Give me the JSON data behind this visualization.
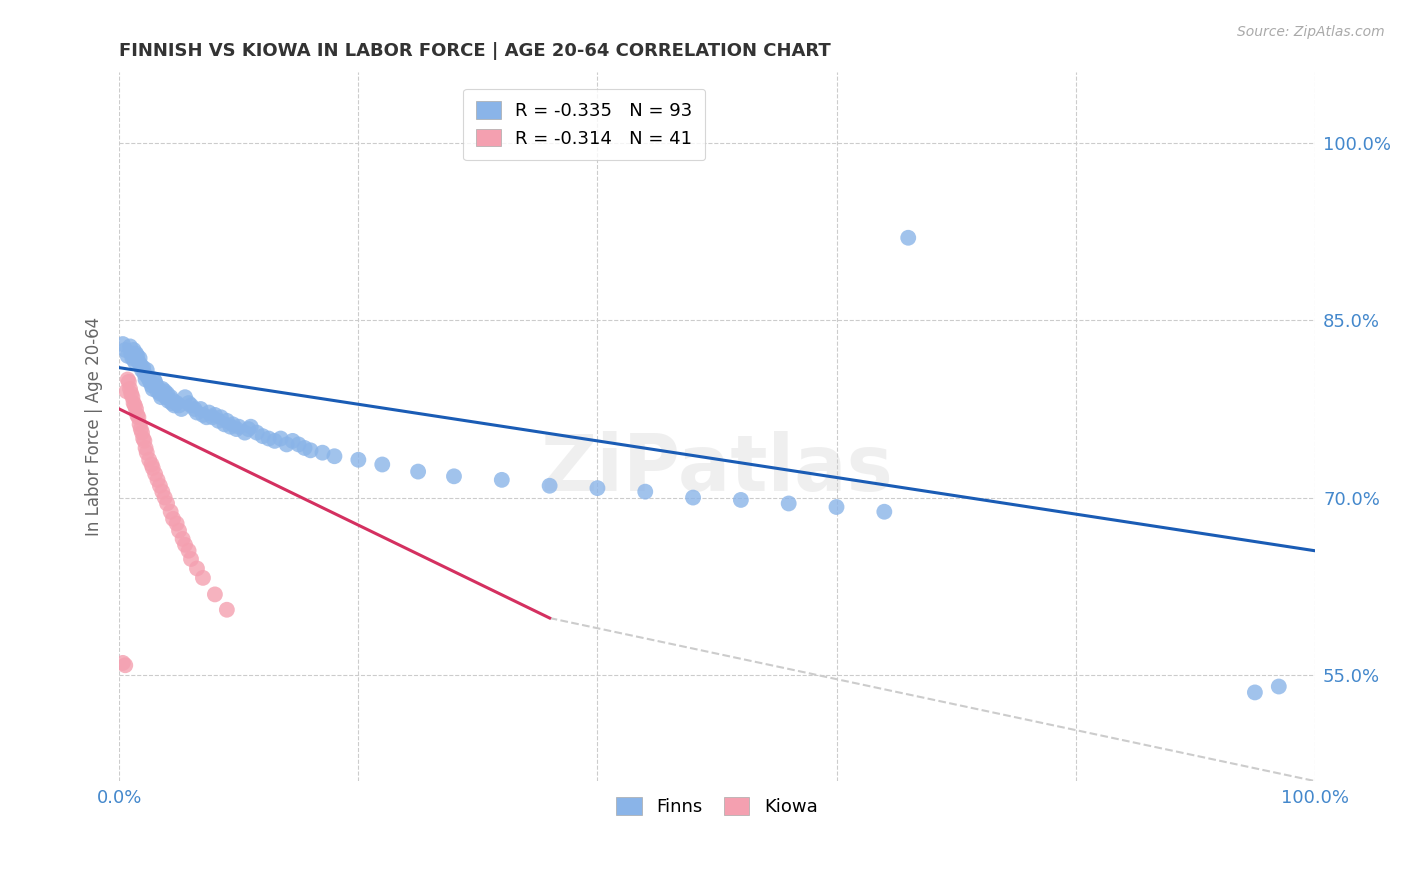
{
  "title": "FINNISH VS KIOWA IN LABOR FORCE | AGE 20-64 CORRELATION CHART",
  "source": "Source: ZipAtlas.com",
  "ylabel": "In Labor Force | Age 20-64",
  "xlim": [
    0.0,
    1.0
  ],
  "ylim": [
    0.46,
    1.06
  ],
  "yticks": [
    0.55,
    0.7,
    0.85,
    1.0
  ],
  "ytick_labels": [
    "55.0%",
    "70.0%",
    "85.0%",
    "100.0%"
  ],
  "xticks": [
    0.0,
    0.2,
    0.4,
    0.6,
    0.8,
    1.0
  ],
  "xtick_labels": [
    "0.0%",
    "",
    "",
    "",
    "",
    "100.0%"
  ],
  "legend_finns": "R = -0.335   N = 93",
  "legend_kiowa": "R = -0.314   N = 41",
  "finns_color": "#8ab4e8",
  "kiowa_color": "#f4a0b0",
  "trend_finns_color": "#1a5cb5",
  "trend_kiowa_color": "#d43060",
  "trend_dashed_color": "#cccccc",
  "grid_color": "#cccccc",
  "axis_label_color": "#4488cc",
  "title_color": "#333333",
  "finns_x": [
    0.003,
    0.005,
    0.007,
    0.009,
    0.01,
    0.011,
    0.012,
    0.013,
    0.014,
    0.015,
    0.016,
    0.017,
    0.018,
    0.019,
    0.02,
    0.021,
    0.022,
    0.023,
    0.024,
    0.025,
    0.026,
    0.027,
    0.028,
    0.029,
    0.03,
    0.031,
    0.032,
    0.033,
    0.034,
    0.035,
    0.036,
    0.037,
    0.038,
    0.039,
    0.04,
    0.041,
    0.043,
    0.044,
    0.045,
    0.046,
    0.048,
    0.05,
    0.052,
    0.055,
    0.058,
    0.06,
    0.063,
    0.065,
    0.068,
    0.07,
    0.073,
    0.075,
    0.078,
    0.08,
    0.083,
    0.085,
    0.088,
    0.09,
    0.093,
    0.095,
    0.098,
    0.1,
    0.105,
    0.108,
    0.11,
    0.115,
    0.12,
    0.125,
    0.13,
    0.135,
    0.14,
    0.145,
    0.15,
    0.155,
    0.16,
    0.17,
    0.18,
    0.2,
    0.22,
    0.25,
    0.28,
    0.32,
    0.36,
    0.4,
    0.44,
    0.48,
    0.52,
    0.56,
    0.6,
    0.64,
    0.66,
    0.95,
    0.97
  ],
  "finns_y": [
    0.83,
    0.825,
    0.82,
    0.828,
    0.822,
    0.818,
    0.825,
    0.815,
    0.822,
    0.82,
    0.815,
    0.818,
    0.812,
    0.808,
    0.81,
    0.805,
    0.8,
    0.808,
    0.802,
    0.8,
    0.798,
    0.795,
    0.792,
    0.8,
    0.798,
    0.795,
    0.79,
    0.792,
    0.788,
    0.785,
    0.792,
    0.788,
    0.79,
    0.785,
    0.788,
    0.782,
    0.785,
    0.78,
    0.782,
    0.778,
    0.78,
    0.778,
    0.775,
    0.785,
    0.78,
    0.778,
    0.775,
    0.772,
    0.775,
    0.77,
    0.768,
    0.772,
    0.768,
    0.77,
    0.765,
    0.768,
    0.762,
    0.765,
    0.76,
    0.762,
    0.758,
    0.76,
    0.755,
    0.758,
    0.76,
    0.755,
    0.752,
    0.75,
    0.748,
    0.75,
    0.745,
    0.748,
    0.745,
    0.742,
    0.74,
    0.738,
    0.735,
    0.732,
    0.728,
    0.722,
    0.718,
    0.715,
    0.71,
    0.708,
    0.705,
    0.7,
    0.698,
    0.695,
    0.692,
    0.688,
    0.92,
    0.535,
    0.54
  ],
  "kiowa_x": [
    0.003,
    0.005,
    0.006,
    0.007,
    0.008,
    0.009,
    0.01,
    0.011,
    0.012,
    0.013,
    0.014,
    0.015,
    0.016,
    0.017,
    0.018,
    0.019,
    0.02,
    0.021,
    0.022,
    0.023,
    0.025,
    0.027,
    0.028,
    0.03,
    0.032,
    0.034,
    0.036,
    0.038,
    0.04,
    0.043,
    0.045,
    0.048,
    0.05,
    0.053,
    0.055,
    0.058,
    0.06,
    0.065,
    0.07,
    0.08,
    0.09
  ],
  "kiowa_y": [
    0.56,
    0.558,
    0.79,
    0.8,
    0.798,
    0.792,
    0.788,
    0.785,
    0.78,
    0.778,
    0.775,
    0.77,
    0.768,
    0.762,
    0.758,
    0.755,
    0.75,
    0.748,
    0.742,
    0.738,
    0.732,
    0.728,
    0.725,
    0.72,
    0.715,
    0.71,
    0.705,
    0.7,
    0.695,
    0.688,
    0.682,
    0.678,
    0.672,
    0.665,
    0.66,
    0.655,
    0.648,
    0.64,
    0.632,
    0.618,
    0.605
  ],
  "finns_trend_x": [
    0.0,
    1.0
  ],
  "finns_trend_y": [
    0.81,
    0.655
  ],
  "kiowa_trend_x": [
    0.0,
    0.36
  ],
  "kiowa_trend_y": [
    0.775,
    0.598
  ],
  "dashed_trend_x": [
    0.36,
    1.0
  ],
  "dashed_trend_y": [
    0.598,
    0.46
  ]
}
